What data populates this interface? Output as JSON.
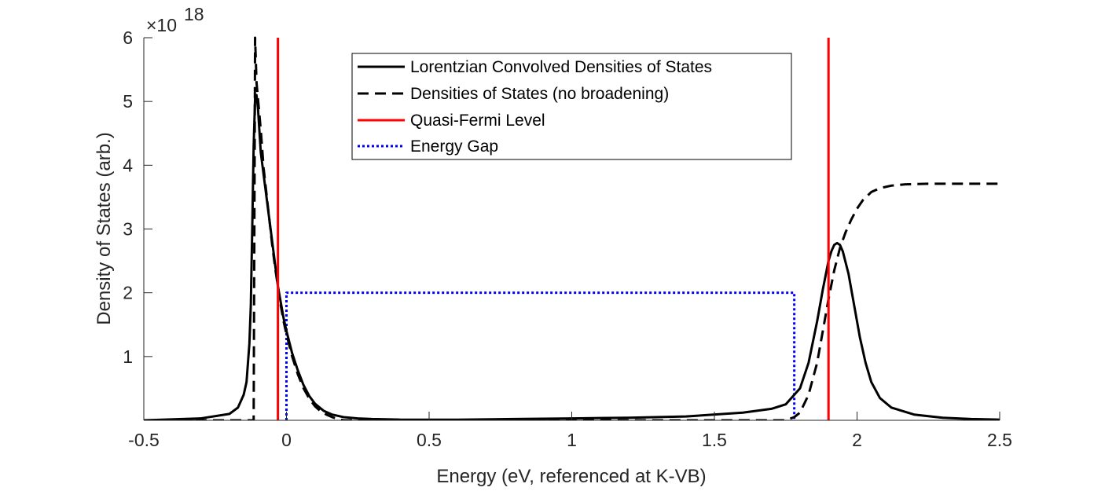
{
  "chart_data": {
    "type": "line",
    "title": "",
    "xlabel": "Energy (eV, referenced at K-VB)",
    "ylabel": "Density of States (arb.)",
    "y_exponent_label": "×10",
    "y_exponent_power": "18",
    "xlim": [
      -0.5,
      2.5
    ],
    "ylim": [
      0,
      6
    ],
    "xticks": [
      -0.5,
      0,
      0.5,
      1,
      1.5,
      2,
      2.5
    ],
    "xtick_labels": [
      "-0.5",
      "0",
      "0.5",
      "1",
      "1.5",
      "2",
      "2.5"
    ],
    "yticks": [
      1,
      2,
      3,
      4,
      5,
      6
    ],
    "ytick_labels": [
      "1",
      "2",
      "3",
      "4",
      "5",
      "6"
    ],
    "grid": false,
    "legend_position": "top-center",
    "colors": {
      "black": "#000000",
      "red": "#ff0000",
      "blue": "#0000ff",
      "axis": "#262626"
    },
    "series": [
      {
        "name": "Lorentzian Convolved Densities of States",
        "style": "solid",
        "color": "#000000",
        "x": [
          -0.5,
          -0.3,
          -0.2,
          -0.17,
          -0.15,
          -0.14,
          -0.13,
          -0.125,
          -0.12,
          -0.115,
          -0.11,
          -0.105,
          -0.1,
          -0.095,
          -0.09,
          -0.08,
          -0.07,
          -0.06,
          -0.05,
          -0.04,
          -0.03,
          -0.02,
          -0.01,
          0,
          0.02,
          0.04,
          0.06,
          0.08,
          0.1,
          0.13,
          0.16,
          0.2,
          0.25,
          0.3,
          0.4,
          0.6,
          0.8,
          1.0,
          1.2,
          1.4,
          1.6,
          1.7,
          1.75,
          1.8,
          1.83,
          1.86,
          1.88,
          1.9,
          1.91,
          1.92,
          1.93,
          1.94,
          1.95,
          1.97,
          1.99,
          2.01,
          2.03,
          2.05,
          2.08,
          2.12,
          2.2,
          2.3,
          2.4,
          2.5
        ],
        "y": [
          0.0,
          0.03,
          0.1,
          0.2,
          0.4,
          0.6,
          1.2,
          1.8,
          3.0,
          4.3,
          5.05,
          5.1,
          4.9,
          4.55,
          4.2,
          3.85,
          3.5,
          3.15,
          2.8,
          2.45,
          2.1,
          1.85,
          1.6,
          1.4,
          1.05,
          0.78,
          0.55,
          0.38,
          0.26,
          0.15,
          0.09,
          0.05,
          0.03,
          0.02,
          0.01,
          0.01,
          0.02,
          0.03,
          0.04,
          0.06,
          0.12,
          0.18,
          0.25,
          0.5,
          0.9,
          1.55,
          2.05,
          2.5,
          2.65,
          2.75,
          2.78,
          2.75,
          2.65,
          2.3,
          1.8,
          1.3,
          0.9,
          0.6,
          0.35,
          0.2,
          0.09,
          0.04,
          0.02,
          0.01
        ]
      },
      {
        "name": "Densities of States (no broadening)",
        "style": "dashed",
        "color": "#000000",
        "x": [
          -0.5,
          -0.3,
          -0.2,
          -0.13,
          -0.12,
          -0.115,
          -0.11,
          -0.105,
          -0.1,
          -0.095,
          -0.09,
          -0.085,
          -0.08,
          -0.07,
          -0.06,
          -0.05,
          -0.04,
          -0.03,
          -0.02,
          -0.01,
          0,
          0.02,
          0.04,
          0.06,
          0.08,
          0.1,
          0.12,
          0.14,
          0.16,
          0.18,
          0.2,
          0.4,
          0.8,
          1.2,
          1.5,
          1.7,
          1.75,
          1.78,
          1.8,
          1.83,
          1.86,
          1.88,
          1.9,
          1.92,
          1.94,
          1.96,
          1.98,
          2.0,
          2.02,
          2.05,
          2.08,
          2.12,
          2.17,
          2.25,
          2.35,
          2.5
        ],
        "y": [
          0,
          0,
          0,
          0,
          0,
          0,
          6.0,
          5.3,
          5.05,
          4.8,
          4.55,
          4.25,
          3.95,
          3.55,
          3.15,
          2.75,
          2.4,
          2.1,
          1.8,
          1.55,
          1.35,
          1.0,
          0.72,
          0.5,
          0.34,
          0.22,
          0.14,
          0.09,
          0.05,
          0.02,
          0,
          0,
          0,
          0,
          0,
          0,
          0,
          0.05,
          0.12,
          0.4,
          0.9,
          1.4,
          1.9,
          2.35,
          2.7,
          2.95,
          3.15,
          3.32,
          3.45,
          3.58,
          3.64,
          3.68,
          3.7,
          3.71,
          3.71,
          3.71
        ]
      },
      {
        "name": "Quasi-Fermi Level",
        "style": "solid",
        "color": "#ff0000",
        "segments": [
          {
            "x": [
              -0.03,
              -0.03
            ],
            "y": [
              0,
              6
            ]
          },
          {
            "x": [
              1.9,
              1.9
            ],
            "y": [
              0,
              6
            ]
          }
        ]
      },
      {
        "name": "Energy Gap",
        "style": "dotted",
        "color": "#0000ff",
        "x": [
          0,
          0,
          1.78,
          1.78
        ],
        "y": [
          0,
          2,
          2,
          0
        ]
      }
    ]
  }
}
